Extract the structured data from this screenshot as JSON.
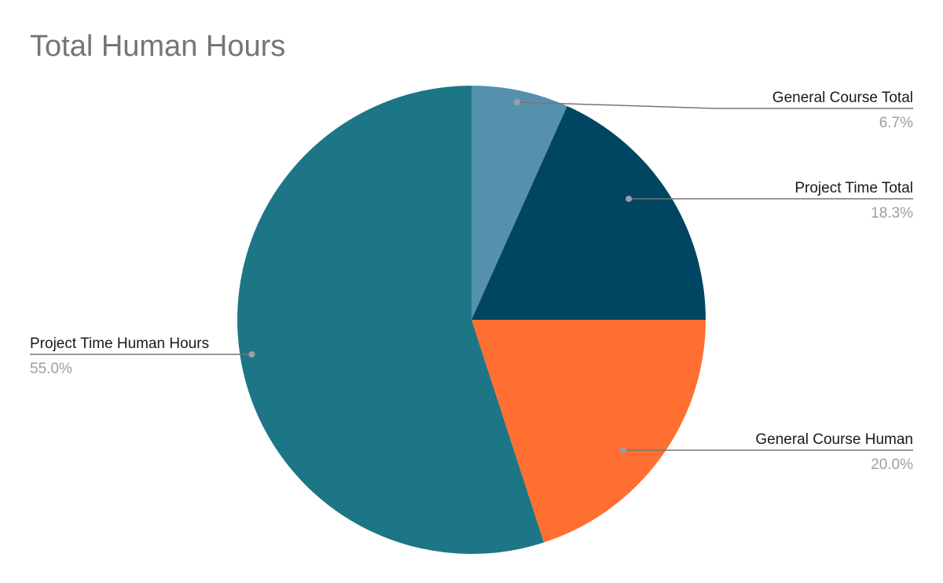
{
  "chart_data": {
    "type": "pie",
    "title": "Total Human Hours",
    "slices": [
      {
        "label": "General Course Total",
        "value": 6.7,
        "value_label": "6.7%",
        "color": "#5591ad"
      },
      {
        "label": "Project Time Total",
        "value": 18.3,
        "value_label": "18.3%",
        "color": "#004561"
      },
      {
        "label": "General Course Human",
        "value": 20.0,
        "value_label": "20.0%",
        "color": "#ff6f31"
      },
      {
        "label": "Project Time Human Hours",
        "value": 55.0,
        "value_label": "55.0%",
        "color": "#1c7685"
      }
    ]
  },
  "colors": {
    "leader_line": "#757575",
    "dot": "#9e9e9e"
  }
}
